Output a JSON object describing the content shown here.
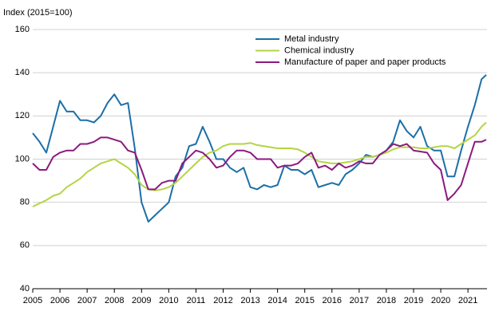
{
  "chart_data": {
    "type": "line",
    "title": "Index (2015=100)",
    "x": [
      2005,
      2005.25,
      2005.5,
      2005.75,
      2006,
      2006.25,
      2006.5,
      2006.75,
      2007,
      2007.25,
      2007.5,
      2007.75,
      2008,
      2008.25,
      2008.5,
      2008.75,
      2009,
      2009.25,
      2009.5,
      2009.75,
      2010,
      2010.25,
      2010.5,
      2010.75,
      2011,
      2011.25,
      2011.5,
      2011.75,
      2012,
      2012.25,
      2012.5,
      2012.75,
      2013,
      2013.25,
      2013.5,
      2013.75,
      2014,
      2014.25,
      2014.5,
      2014.75,
      2015,
      2015.25,
      2015.5,
      2015.75,
      2016,
      2016.25,
      2016.5,
      2016.75,
      2017,
      2017.25,
      2017.5,
      2017.75,
      2018,
      2018.25,
      2018.5,
      2018.75,
      2019,
      2019.25,
      2019.5,
      2019.75,
      2020,
      2020.25,
      2020.5,
      2020.75,
      2021,
      2021.25,
      2021.5,
      2021.67
    ],
    "series": [
      {
        "name": "Metal industry",
        "color": "#1b6fa8",
        "values": [
          112,
          108,
          103,
          115,
          127,
          122,
          122,
          118,
          118,
          117,
          120,
          126,
          130,
          125,
          126,
          105,
          80,
          71,
          74,
          77,
          80,
          92,
          96,
          106,
          107,
          115,
          108,
          100,
          100,
          96,
          94,
          96,
          87,
          86,
          88,
          87,
          88,
          97,
          95,
          95,
          93,
          95,
          87,
          88,
          89,
          88,
          93,
          95,
          98,
          102,
          101,
          102,
          104,
          108,
          118,
          113,
          110,
          115,
          106,
          104,
          104,
          92,
          92,
          104,
          115,
          125,
          137,
          139
        ]
      },
      {
        "name": "Chemical industry",
        "color": "#b5d445",
        "values": [
          78,
          79.5,
          81,
          83,
          84,
          87,
          89,
          91,
          94,
          96,
          98,
          99,
          100,
          98,
          96,
          93,
          88,
          86,
          85.5,
          86,
          87,
          89,
          92,
          95,
          98,
          101,
          103,
          104,
          106,
          107,
          107,
          107,
          107.5,
          106.5,
          106,
          105.5,
          105,
          105,
          105,
          104.5,
          103,
          101,
          99,
          98.5,
          98,
          98,
          98.5,
          99,
          100,
          101,
          101,
          102,
          103,
          104.5,
          105.5,
          105.5,
          105.5,
          105,
          105,
          105.5,
          106,
          106,
          105,
          107,
          109,
          111,
          115,
          117
        ]
      },
      {
        "name": "Manufacture of paper and paper products",
        "color": "#8b1a7e",
        "values": [
          98,
          95,
          95,
          101,
          103,
          104,
          104,
          107,
          107,
          108,
          110,
          110,
          109,
          108,
          104,
          103,
          95,
          86,
          86,
          89,
          90,
          90,
          98,
          101,
          104,
          103,
          100,
          96,
          97,
          101,
          104,
          104,
          103,
          100,
          100,
          100,
          96,
          97,
          97,
          98,
          101,
          103,
          96,
          97,
          95,
          98,
          96,
          97,
          99,
          98,
          98,
          102,
          104,
          107,
          106,
          107,
          104,
          103.5,
          103,
          98,
          95,
          81,
          84,
          88,
          98,
          108,
          108,
          109
        ]
      }
    ],
    "xlim": [
      2005,
      2021.7
    ],
    "xticks": [
      2005,
      2006,
      2007,
      2008,
      2009,
      2010,
      2011,
      2012,
      2013,
      2014,
      2015,
      2016,
      2017,
      2018,
      2019,
      2020,
      2021
    ],
    "ylim": [
      40,
      160
    ],
    "yticks": [
      40,
      60,
      80,
      100,
      120,
      140,
      160
    ],
    "grid": true,
    "legend": "top-right"
  }
}
